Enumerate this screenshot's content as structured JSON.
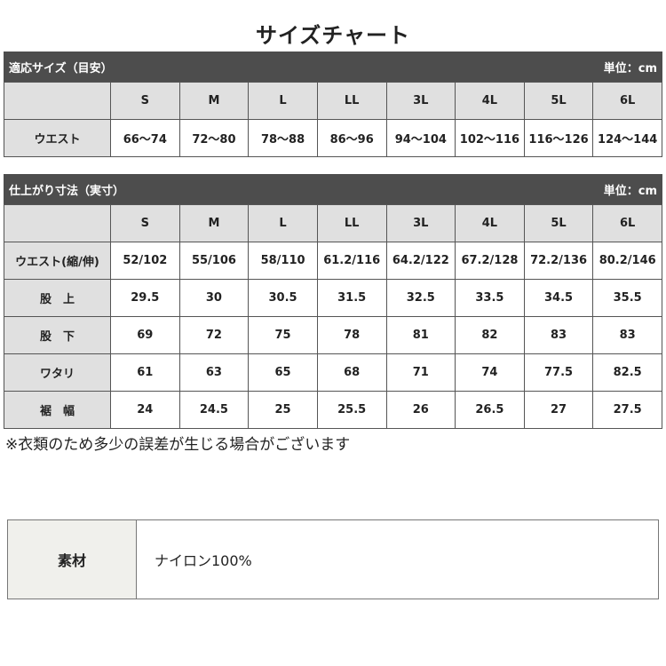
{
  "title": "サイズチャート",
  "table1": {
    "heading": "適応サイズ（目安）",
    "unit": "単位：cm",
    "sizes": [
      "S",
      "M",
      "L",
      "LL",
      "3L",
      "4L",
      "5L",
      "6L"
    ],
    "rows": [
      {
        "label": "ウエスト",
        "values": [
          "66〜74",
          "72〜80",
          "78〜88",
          "86〜96",
          "94〜104",
          "102〜116",
          "116〜126",
          "124〜144"
        ]
      }
    ]
  },
  "table2": {
    "heading": "仕上がり寸法（実寸）",
    "unit": "単位：cm",
    "sizes": [
      "S",
      "M",
      "L",
      "LL",
      "3L",
      "4L",
      "5L",
      "6L"
    ],
    "rows": [
      {
        "label": "ウエスト(縮/伸)",
        "values": [
          "52/102",
          "55/106",
          "58/110",
          "61.2/116",
          "64.2/122",
          "67.2/128",
          "72.2/136",
          "80.2/146"
        ]
      },
      {
        "label": "股　上",
        "values": [
          "29.5",
          "30",
          "30.5",
          "31.5",
          "32.5",
          "33.5",
          "34.5",
          "35.5"
        ]
      },
      {
        "label": "股　下",
        "values": [
          "69",
          "72",
          "75",
          "78",
          "81",
          "82",
          "83",
          "83"
        ]
      },
      {
        "label": "ワタリ",
        "values": [
          "61",
          "63",
          "65",
          "68",
          "71",
          "74",
          "77.5",
          "82.5"
        ]
      },
      {
        "label": "裾　幅",
        "values": [
          "24",
          "24.5",
          "25",
          "25.5",
          "26",
          "26.5",
          "27",
          "27.5"
        ]
      }
    ]
  },
  "note": "※衣類のため多少の誤差が生じる場合がございます",
  "material": {
    "label": "素材",
    "value": "ナイロン100%"
  }
}
